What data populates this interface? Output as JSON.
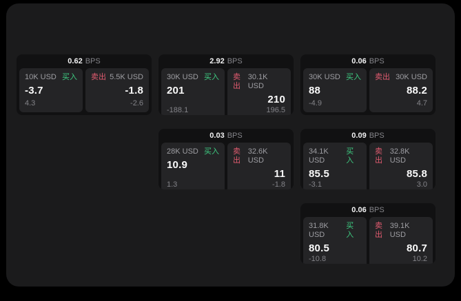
{
  "labels": {
    "bps_unit": "BPS",
    "buy": "买入",
    "sell": "卖出"
  },
  "colors": {
    "outer_background": "#000000",
    "panel_background": "#1b1b1c",
    "card_background": "#111112",
    "tile_background": "#242426",
    "buy_accent": "#3ecb81",
    "sell_accent": "#e25b70"
  },
  "cards": [
    {
      "bps": "0.62",
      "grid": {
        "col": 1,
        "row": 1
      },
      "buy": {
        "amount": "10K USD",
        "price": "-3.7",
        "change": "4.3"
      },
      "sell": {
        "amount": "5.5K USD",
        "price": "-1.8",
        "change": "-2.6"
      }
    },
    {
      "bps": "2.92",
      "grid": {
        "col": 2,
        "row": 1
      },
      "buy": {
        "amount": "30K USD",
        "price": "201",
        "change": "-188.1"
      },
      "sell": {
        "amount": "30.1K USD",
        "price": "210",
        "change": "196.5"
      }
    },
    {
      "bps": "0.06",
      "grid": {
        "col": 3,
        "row": 1
      },
      "buy": {
        "amount": "30K USD",
        "price": "88",
        "change": "-4.9"
      },
      "sell": {
        "amount": "30K USD",
        "price": "88.2",
        "change": "4.7"
      }
    },
    {
      "bps": "0.03",
      "grid": {
        "col": 2,
        "row": 2
      },
      "buy": {
        "amount": "28K USD",
        "price": "10.9",
        "change": "1.3"
      },
      "sell": {
        "amount": "32.6K USD",
        "price": "11",
        "change": "-1.8"
      }
    },
    {
      "bps": "0.09",
      "grid": {
        "col": 3,
        "row": 2
      },
      "buy": {
        "amount": "34.1K USD",
        "price": "85.5",
        "change": "-3.1"
      },
      "sell": {
        "amount": "32.8K USD",
        "price": "85.8",
        "change": "3.0"
      }
    },
    {
      "bps": "0.06",
      "grid": {
        "col": 3,
        "row": 3
      },
      "buy": {
        "amount": "31.8K USD",
        "price": "80.5",
        "change": "-10.8"
      },
      "sell": {
        "amount": "39.1K USD",
        "price": "80.7",
        "change": "10.2"
      }
    }
  ]
}
